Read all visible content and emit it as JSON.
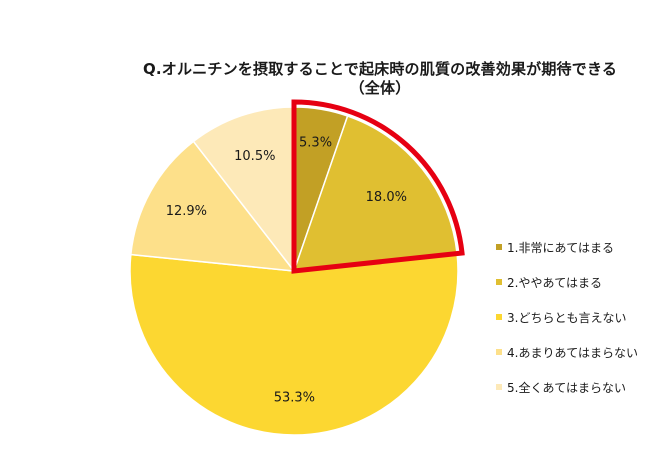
{
  "chart_data": {
    "type": "pie",
    "title": "Q.オルニチンを摂取することで起床時の肌質の改善効果が期待できる",
    "subtitle": "（全体）",
    "categories": [
      "1.非常にあてはまる",
      "2.ややあてはまる",
      "3.どちらとも言えない",
      "4.あまりあてはまらない",
      "5.全くあてはまらない"
    ],
    "values": [
      5.3,
      18.0,
      53.3,
      12.9,
      10.5
    ],
    "labels": [
      "5.3%",
      "18.0%",
      "53.3%",
      "12.9%",
      "10.5%"
    ],
    "colors": [
      "#c2a025",
      "#e0bf31",
      "#fcd731",
      "#fde08a",
      "#fde9b8"
    ],
    "highlight_color": "#e60012",
    "highlighted_categories": [
      "1.非常にあてはまる",
      "2.ややあてはまる"
    ],
    "legend_position": "right"
  }
}
